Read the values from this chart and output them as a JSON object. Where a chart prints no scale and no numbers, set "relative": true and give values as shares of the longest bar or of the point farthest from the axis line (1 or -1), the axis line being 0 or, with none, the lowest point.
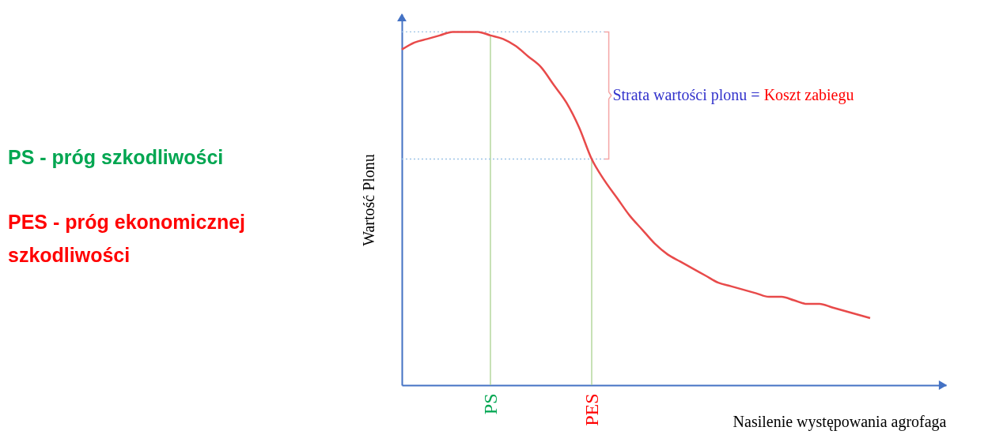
{
  "chart_data": {
    "type": "line",
    "relative": true,
    "xlabel": "Nasilenie występowania agrofaga",
    "ylabel": "Wartość Plonu",
    "categories": [
      null,
      null,
      null,
      null,
      null,
      null,
      null,
      "PS",
      null,
      null,
      null,
      null,
      null,
      null,
      null,
      "PES",
      null,
      null,
      null,
      null,
      null,
      null,
      null,
      null,
      null,
      null,
      null,
      null,
      null,
      null,
      null,
      null,
      null,
      null,
      null,
      null,
      null,
      null,
      null,
      null,
      null,
      null,
      null,
      null
    ],
    "series": [
      {
        "color": "#e84a4a",
        "values": [
          0.95,
          0.97,
          0.98,
          0.99,
          1.0,
          1,
          1.0,
          0.99,
          0.98,
          0.96,
          0.93,
          0.9,
          0.85,
          0.8,
          0.73,
          0.64,
          0.58,
          0.53,
          0.48,
          0.44,
          0.4,
          0.37,
          0.35,
          0.33,
          0.31,
          0.29,
          0.28,
          0.27,
          0.26,
          0.25,
          0.25,
          0.24,
          0.23,
          0.23,
          0.22,
          0.21,
          0.2,
          0.19,
          null,
          null,
          null,
          null,
          null,
          null
        ]
      }
    ],
    "ref_lines": [
      {
        "axis": "x",
        "value": "PS",
        "color": "#a9d18e"
      },
      {
        "axis": "x",
        "value": "PES",
        "color": "#a9d18e"
      },
      {
        "axis": "y",
        "value": 1,
        "color": "#9dc3e6",
        "line_style": "dotted"
      },
      {
        "axis": "y",
        "value": 0.64,
        "color": "#9dc3e6",
        "line_style": "dotted"
      }
    ],
    "annotations": [
      "PS - próg szkodliwości",
      "PES - próg ekonomicznej szkodliwości",
      "Strata wartości plonu =",
      "Koszt zabiegu"
    ],
    "marker": "none",
    "line_style": "solid"
  }
}
